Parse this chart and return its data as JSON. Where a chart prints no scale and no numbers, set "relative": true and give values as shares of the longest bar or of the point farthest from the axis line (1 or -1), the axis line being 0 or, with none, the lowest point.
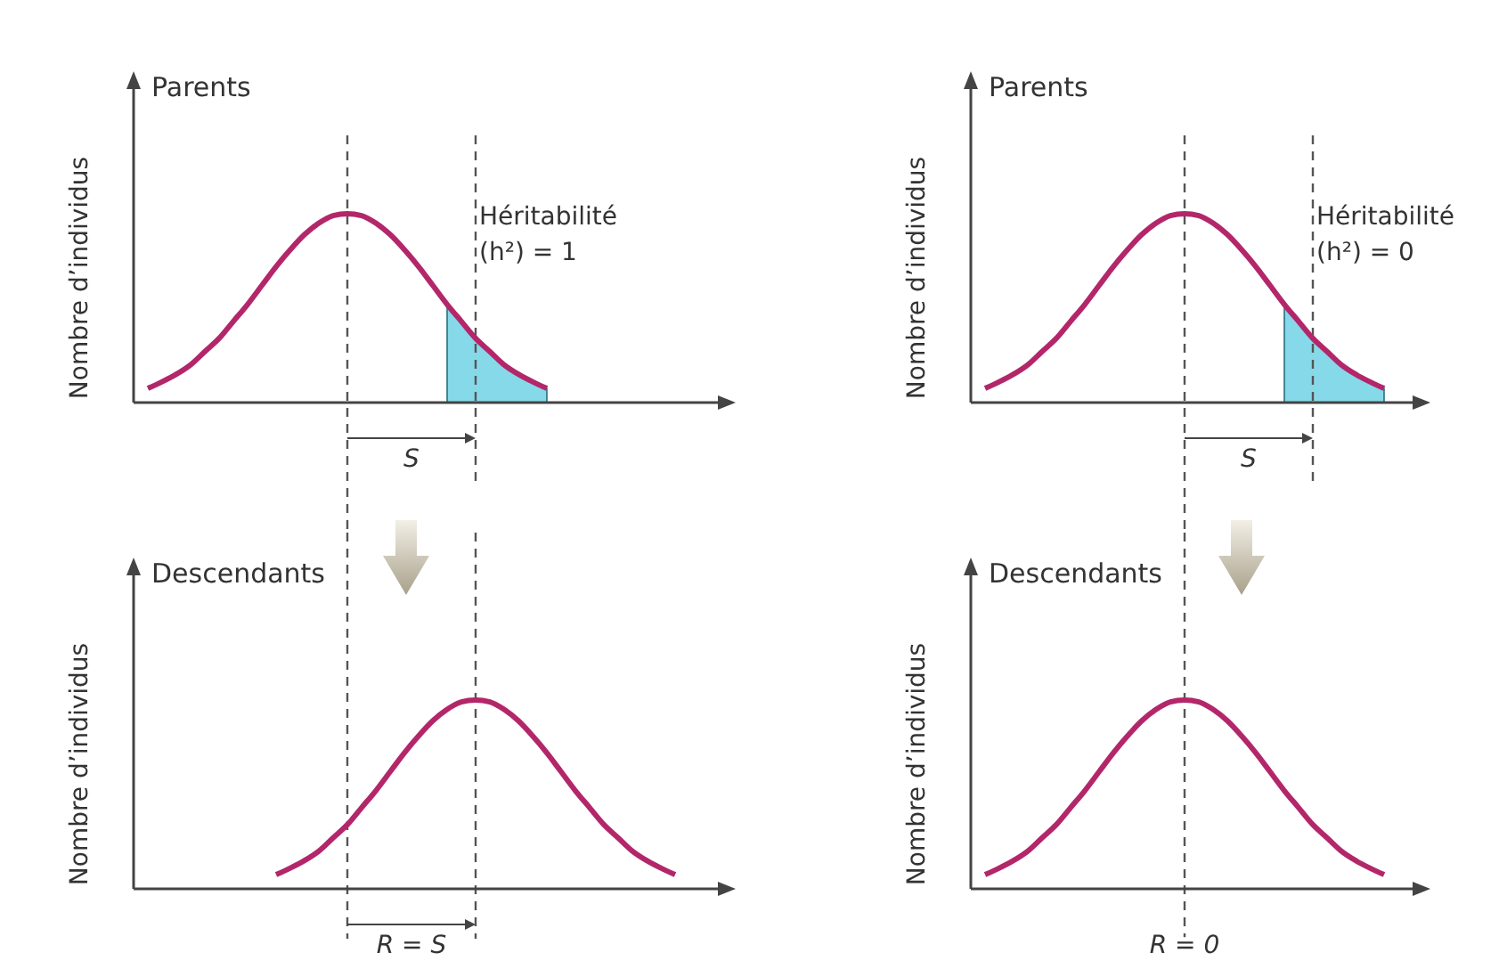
{
  "chart_data": [
    {
      "type": "line",
      "relative": true,
      "title": "Parents",
      "ylabel": "Nombre d’individus",
      "categories": [
        null,
        null,
        null,
        null,
        null,
        null,
        null,
        null,
        null,
        null,
        null,
        null,
        null,
        null,
        null,
        null,
        null,
        null,
        null,
        null,
        null,
        null,
        null,
        null,
        null,
        null,
        null,
        null,
        null,
        null,
        null,
        null,
        null,
        null,
        null,
        null,
        null,
        null,
        null,
        null,
        null
      ],
      "series": [
        {
          "type": "line",
          "color": "#b3276a",
          "values": [
            null,
            0.075,
            0.11,
            0.15,
            0.2,
            0.27,
            0.34,
            0.43,
            0.52,
            0.62,
            0.72,
            0.81,
            0.89,
            0.95,
            0.99,
            1,
            0.99,
            0.95,
            0.89,
            0.81,
            0.72,
            0.62,
            0.52,
            0.43,
            0.34,
            0.27,
            0.2,
            0.15,
            0.11,
            0.075,
            null,
            null,
            null,
            null,
            null,
            null,
            null,
            null,
            null,
            null,
            null
          ]
        },
        {
          "type": "area",
          "color": "#86d9e8",
          "values": [
            null,
            null,
            null,
            null,
            null,
            null,
            null,
            null,
            null,
            null,
            null,
            null,
            null,
            null,
            null,
            null,
            null,
            null,
            null,
            null,
            null,
            null,
            0.52,
            0.43,
            0.34,
            0.27,
            0.2,
            0.15,
            0.11,
            0.075,
            null,
            null,
            null,
            null,
            null,
            null,
            null,
            null,
            null,
            null,
            null
          ]
        }
      ],
      "annotations": [
        "Héritabilité\n(h²) = 1",
        "S"
      ]
    },
    {
      "type": "line",
      "relative": true,
      "title": "Parents",
      "ylabel": "Nombre d’individus",
      "categories": [
        null,
        null,
        null,
        null,
        null,
        null,
        null,
        null,
        null,
        null,
        null,
        null,
        null,
        null,
        null,
        null,
        null,
        null,
        null,
        null,
        null,
        null,
        null,
        null,
        null,
        null,
        null,
        null,
        null,
        null,
        null
      ],
      "series": [
        {
          "type": "line",
          "color": "#b3276a",
          "values": [
            null,
            0.075,
            0.11,
            0.15,
            0.2,
            0.27,
            0.34,
            0.43,
            0.52,
            0.62,
            0.72,
            0.81,
            0.89,
            0.95,
            0.99,
            1,
            0.99,
            0.95,
            0.89,
            0.81,
            0.72,
            0.62,
            0.52,
            0.43,
            0.34,
            0.27,
            0.2,
            0.15,
            0.11,
            0.075,
            null
          ]
        },
        {
          "type": "area",
          "color": "#86d9e8",
          "values": [
            null,
            null,
            null,
            null,
            null,
            null,
            null,
            null,
            null,
            null,
            null,
            null,
            null,
            null,
            null,
            null,
            null,
            null,
            null,
            null,
            null,
            null,
            0.52,
            0.43,
            0.34,
            0.27,
            0.2,
            0.15,
            0.11,
            0.075,
            null
          ]
        }
      ],
      "annotations": [
        "Héritabilité\n(h²) = 0",
        "S"
      ]
    },
    {
      "type": "line",
      "relative": true,
      "title": "Descendants",
      "ylabel": "Nombre d’individus",
      "categories": [
        null,
        null,
        null,
        null,
        null,
        null,
        null,
        null,
        null,
        null,
        null,
        null,
        null,
        null,
        null,
        null,
        null,
        null,
        null,
        null,
        null,
        null,
        null,
        null,
        null,
        null,
        null,
        null,
        null,
        null,
        null,
        null,
        null,
        null,
        null,
        null,
        null,
        null,
        null,
        null,
        null
      ],
      "series": [
        {
          "type": "line",
          "color": "#b3276a",
          "values": [
            null,
            null,
            null,
            null,
            null,
            null,
            null,
            null,
            null,
            null,
            0.075,
            0.11,
            0.15,
            0.2,
            0.27,
            0.34,
            0.43,
            0.52,
            0.62,
            0.72,
            0.81,
            0.89,
            0.95,
            0.99,
            1,
            0.99,
            0.95,
            0.89,
            0.81,
            0.72,
            0.62,
            0.52,
            0.43,
            0.34,
            0.27,
            0.2,
            0.15,
            0.11,
            0.075,
            null,
            null
          ]
        }
      ],
      "annotations": [
        "R = S"
      ]
    },
    {
      "type": "line",
      "relative": true,
      "title": "Descendants",
      "ylabel": "Nombre d’individus",
      "categories": [
        null,
        null,
        null,
        null,
        null,
        null,
        null,
        null,
        null,
        null,
        null,
        null,
        null,
        null,
        null,
        null,
        null,
        null,
        null,
        null,
        null,
        null,
        null,
        null,
        null,
        null,
        null,
        null,
        null,
        null,
        null
      ],
      "series": [
        {
          "type": "line",
          "color": "#b3276a",
          "values": [
            null,
            0.075,
            0.11,
            0.15,
            0.2,
            0.27,
            0.34,
            0.43,
            0.52,
            0.62,
            0.72,
            0.81,
            0.89,
            0.95,
            0.99,
            1,
            0.99,
            0.95,
            0.89,
            0.81,
            0.72,
            0.62,
            0.52,
            0.43,
            0.34,
            0.27,
            0.2,
            0.15,
            0.11,
            0.075,
            null
          ]
        }
      ],
      "annotations": [
        "R = 0"
      ]
    }
  ]
}
